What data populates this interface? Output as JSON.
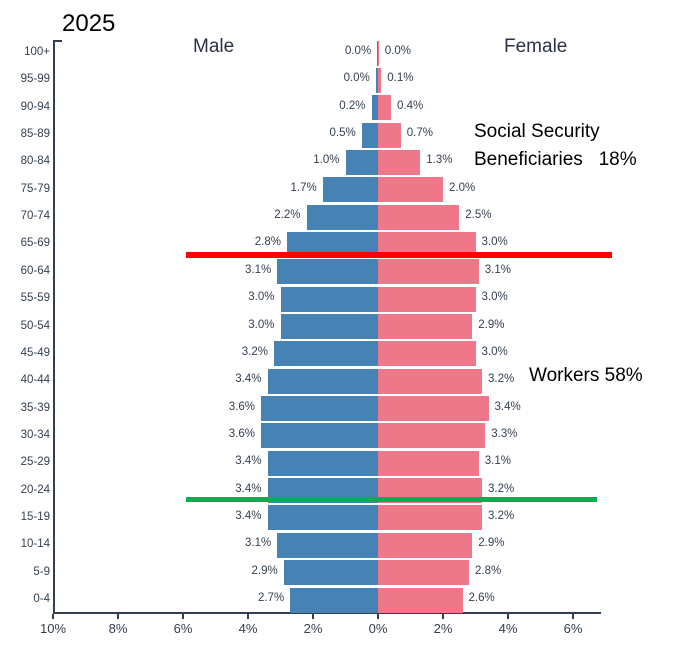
{
  "title": "2025",
  "labels": {
    "male": "Male",
    "female": "Female"
  },
  "annotations": {
    "beneficiaries_line1": "Social Security",
    "beneficiaries_line2": "Beneficiaries   18%",
    "workers": "Workers 58%"
  },
  "colors": {
    "male_bar": "#4682b4",
    "female_bar": "#ee7889",
    "red_line": "#ff0000",
    "green_line": "#00b050",
    "text": "#333f50",
    "axis": "#333f50"
  },
  "chart_data": {
    "type": "bar",
    "subtype": "population-pyramid",
    "title": "2025",
    "categories": [
      "100+",
      "95-99",
      "90-94",
      "85-89",
      "80-84",
      "75-79",
      "70-74",
      "65-69",
      "60-64",
      "55-59",
      "50-54",
      "45-49",
      "40-44",
      "35-39",
      "30-34",
      "25-29",
      "20-24",
      "15-19",
      "10-14",
      "5-9",
      "0-4"
    ],
    "series": [
      {
        "name": "Male",
        "values": [
          0.0,
          0.0,
          0.2,
          0.5,
          1.0,
          1.7,
          2.2,
          2.8,
          3.1,
          3.0,
          3.0,
          3.2,
          3.4,
          3.6,
          3.6,
          3.4,
          3.4,
          3.4,
          3.1,
          2.9,
          2.7
        ]
      },
      {
        "name": "Female",
        "values": [
          0.0,
          0.1,
          0.4,
          0.7,
          1.3,
          2.0,
          2.5,
          3.0,
          3.1,
          3.0,
          2.9,
          3.0,
          3.2,
          3.4,
          3.3,
          3.1,
          3.2,
          3.2,
          2.9,
          2.8,
          2.6
        ]
      }
    ],
    "value_unit": "%",
    "x_tick_labels": [
      "10%",
      "8%",
      "6%",
      "4%",
      "2%",
      "0%",
      "2%",
      "4%",
      "6%"
    ],
    "x_tick_percents": [
      -10,
      -8,
      -6,
      -4,
      -2,
      0,
      2,
      4,
      6
    ],
    "grid": false,
    "reference_lines": [
      {
        "color": "#ff0000",
        "below_category": "65-69",
        "label": "Social Security Beneficiaries   18%"
      },
      {
        "color": "#00b050",
        "below_category": "20-24",
        "label": "Workers 58%"
      }
    ]
  }
}
